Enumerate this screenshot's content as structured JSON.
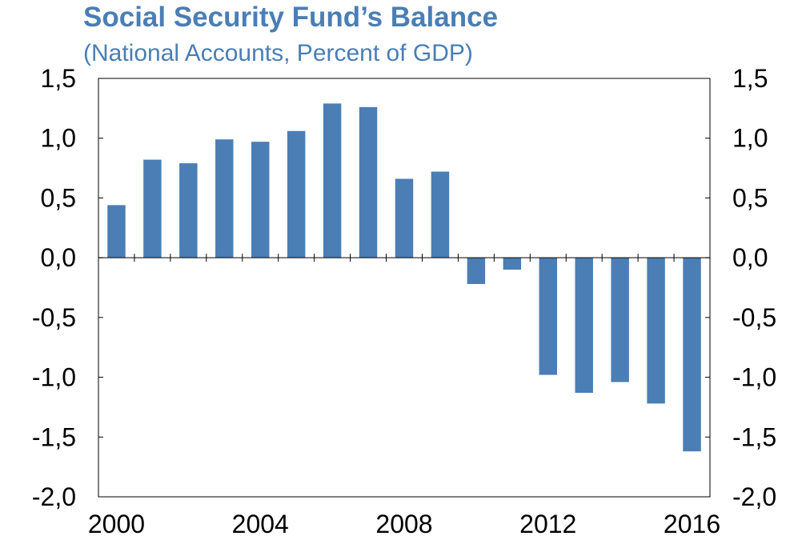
{
  "chart_data": {
    "type": "bar",
    "title": "Social Security Fund’s Balance",
    "subtitle": "(National Accounts, Percent of GDP)",
    "categories": [
      "2000",
      "2001",
      "2002",
      "2003",
      "2004",
      "2005",
      "2006",
      "2007",
      "2008",
      "2009",
      "2010",
      "2011",
      "2012",
      "2013",
      "2014",
      "2015",
      "2016"
    ],
    "x_tick_labels": [
      "2000",
      "2004",
      "2008",
      "2012",
      "2016"
    ],
    "series": [
      {
        "values": [
          0.44,
          0.82,
          0.79,
          0.99,
          0.97,
          1.06,
          1.29,
          1.26,
          0.66,
          0.72,
          -0.22,
          -0.1,
          -0.98,
          -1.13,
          -1.04,
          -1.22,
          -1.62
        ]
      }
    ],
    "ylim": [
      -2.0,
      1.5
    ],
    "y_ticks": [
      1.5,
      1.0,
      0.5,
      0.0,
      -0.5,
      -1.0,
      -1.5,
      -2.0
    ],
    "y_tick_labels": [
      "1,5",
      "1,0",
      "0,5",
      "0,0",
      "-0,5",
      "-1,0",
      "-1,5",
      "-2,0"
    ],
    "grid": false,
    "legend": "none",
    "bar_color": "#4a7eb5"
  }
}
